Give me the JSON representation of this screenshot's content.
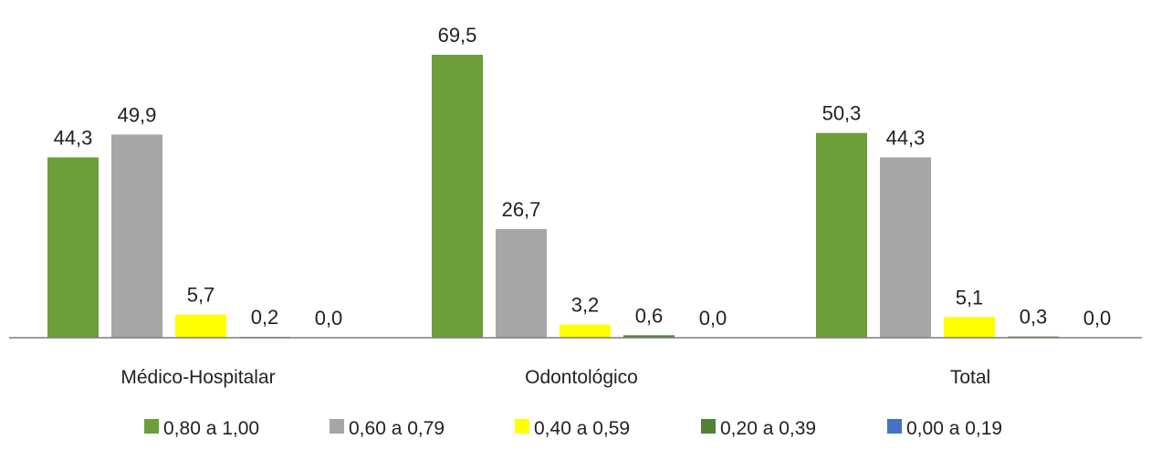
{
  "chart_data": {
    "type": "bar",
    "title": "",
    "xlabel": "",
    "ylabel": "",
    "ylim": [
      0,
      72
    ],
    "grid": false,
    "legend_position": "bottom",
    "categories": [
      "Médico-Hospitalar",
      "Odontológico",
      "Total"
    ],
    "series": [
      {
        "name": "0,80 a 1,00",
        "color": "#6d9e3a",
        "values": [
          44.3,
          69.5,
          50.3
        ],
        "labels": [
          "44,3",
          "69,5",
          "50,3"
        ]
      },
      {
        "name": "0,60 a 0,79",
        "color": "#a6a6a6",
        "values": [
          49.9,
          26.7,
          44.3
        ],
        "labels": [
          "49,9",
          "26,7",
          "44,3"
        ]
      },
      {
        "name": "0,40 a 0,59",
        "color": "#ffff00",
        "values": [
          5.7,
          3.2,
          5.1
        ],
        "labels": [
          "5,7",
          "3,2",
          "5,1"
        ]
      },
      {
        "name": "0,20 a 0,39",
        "color": "#538135",
        "values": [
          0.2,
          0.6,
          0.3
        ],
        "labels": [
          "0,2",
          "0,6",
          "0,3"
        ]
      },
      {
        "name": "0,00 a 0,19",
        "color": "#4472c4",
        "values": [
          0.0,
          0.0,
          0.0
        ],
        "labels": [
          "0,0",
          "0,0",
          "0,0"
        ]
      }
    ]
  }
}
